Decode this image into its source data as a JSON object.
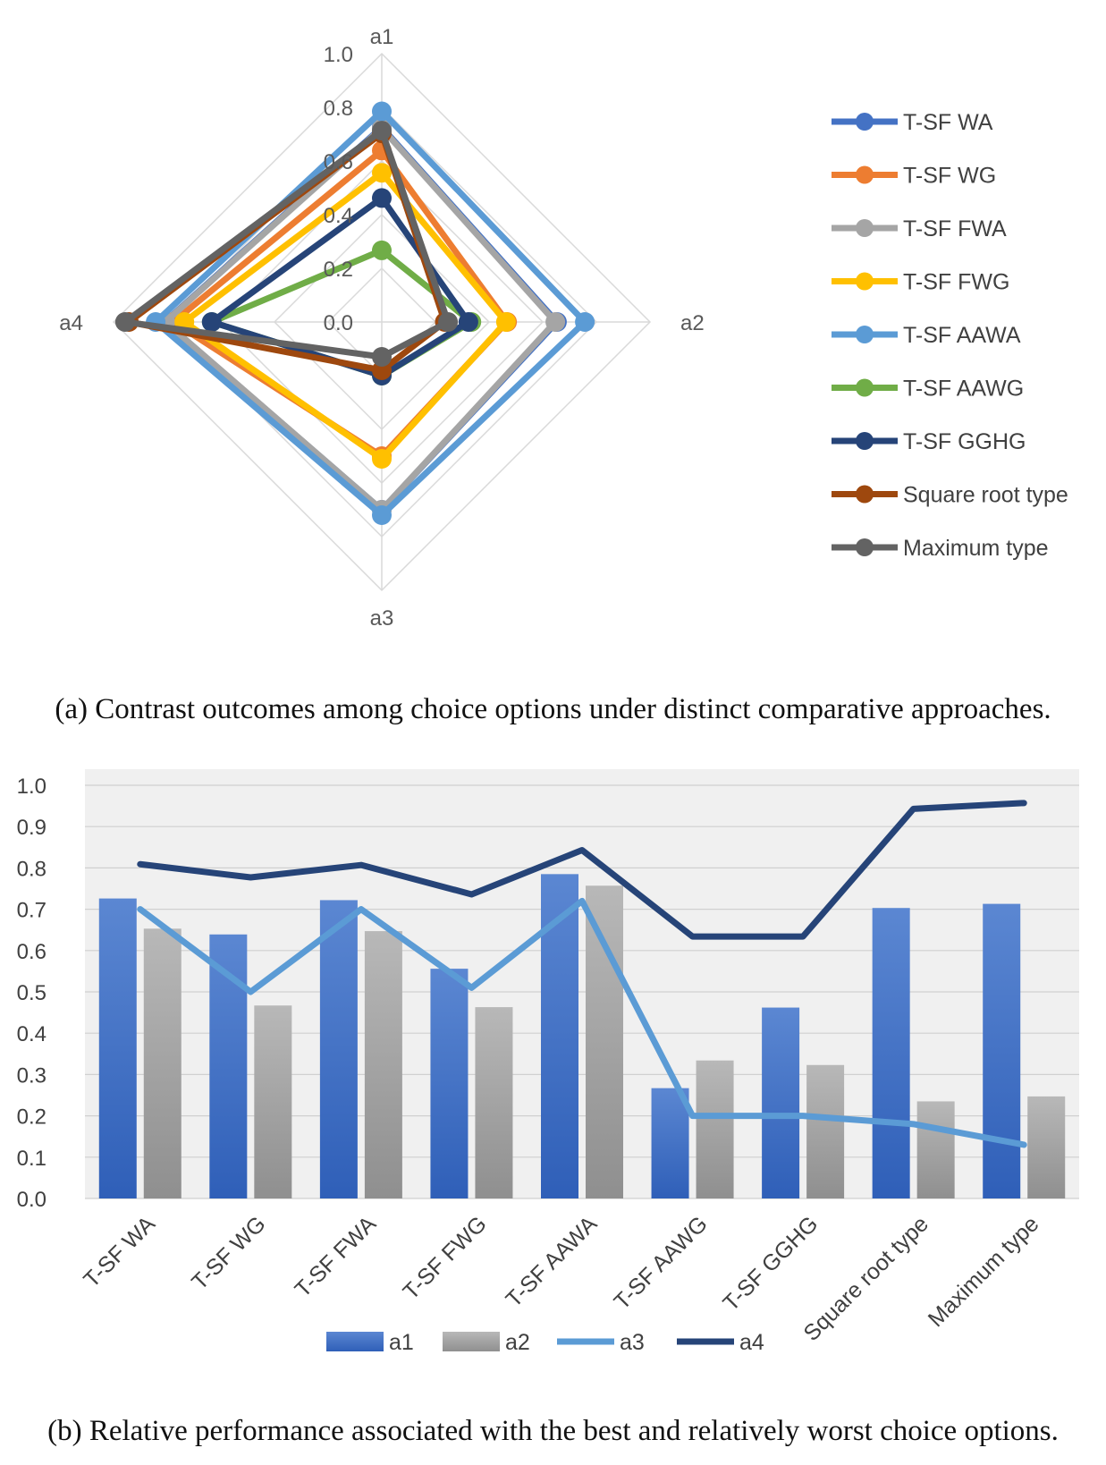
{
  "captions": {
    "a": "(a) Contrast outcomes among choice options under distinct comparative approaches.",
    "b": "(b) Relative performance associated with the best and relatively worst choice options."
  },
  "chart_data": [
    {
      "type": "radar",
      "axes": [
        "a1",
        "a2",
        "a3",
        "a4"
      ],
      "ticks": [
        "0.0",
        "0.2",
        "0.4",
        "0.6",
        "0.8",
        "1.0"
      ],
      "rlim": [
        0,
        1
      ],
      "legend_position": "right",
      "series": [
        {
          "name": "T-SF WA",
          "color": "#4472C4",
          "values": [
            0.726,
            0.653,
            0.7,
            0.809
          ]
        },
        {
          "name": "T-SF WG",
          "color": "#ED7D31",
          "values": [
            0.639,
            0.467,
            0.5,
            0.777
          ]
        },
        {
          "name": "T-SF FWA",
          "color": "#A5A5A5",
          "values": [
            0.722,
            0.647,
            0.7,
            0.807
          ]
        },
        {
          "name": "T-SF FWG",
          "color": "#FFC000",
          "values": [
            0.556,
            0.463,
            0.51,
            0.736
          ]
        },
        {
          "name": "T-SF AAWA",
          "color": "#5B9BD5",
          "values": [
            0.785,
            0.757,
            0.72,
            0.843
          ]
        },
        {
          "name": "T-SF AAWG",
          "color": "#70AD47",
          "values": [
            0.267,
            0.334,
            0.2,
            0.634
          ]
        },
        {
          "name": "T-SF GGHG",
          "color": "#264478",
          "values": [
            0.462,
            0.323,
            0.2,
            0.634
          ]
        },
        {
          "name": "Square root type",
          "color": "#9E480E",
          "values": [
            0.703,
            0.235,
            0.18,
            0.943
          ]
        },
        {
          "name": "Maximum type",
          "color": "#636363",
          "values": [
            0.713,
            0.247,
            0.13,
            0.957
          ]
        }
      ]
    },
    {
      "type": "bar",
      "categories": [
        "T-SF WA",
        "T-SF WG",
        "T-SF FWA",
        "T-SF FWG",
        "T-SF AAWA",
        "T-SF AAWG",
        "T-SF GGHG",
        "Square root type",
        "Maximum type"
      ],
      "ylim": [
        0,
        1
      ],
      "yticks": [
        "0.0",
        "0.1",
        "0.2",
        "0.3",
        "0.4",
        "0.5",
        "0.6",
        "0.7",
        "0.8",
        "0.9",
        "1.0"
      ],
      "grid": true,
      "legend_position": "bottom",
      "series": [
        {
          "name": "a1",
          "kind": "bar",
          "color": "#4472C4",
          "values": [
            0.726,
            0.639,
            0.722,
            0.556,
            0.785,
            0.267,
            0.462,
            0.703,
            0.713
          ]
        },
        {
          "name": "a2",
          "kind": "bar",
          "color": "#A5A5A5",
          "values": [
            0.653,
            0.467,
            0.647,
            0.463,
            0.757,
            0.334,
            0.323,
            0.235,
            0.247
          ]
        },
        {
          "name": "a3",
          "kind": "line",
          "color": "#5B9BD5",
          "values": [
            0.7,
            0.5,
            0.7,
            0.51,
            0.72,
            0.2,
            0.2,
            0.18,
            0.13
          ]
        },
        {
          "name": "a4",
          "kind": "line",
          "color": "#264478",
          "values": [
            0.809,
            0.777,
            0.807,
            0.736,
            0.843,
            0.634,
            0.634,
            0.943,
            0.957
          ]
        }
      ]
    }
  ]
}
